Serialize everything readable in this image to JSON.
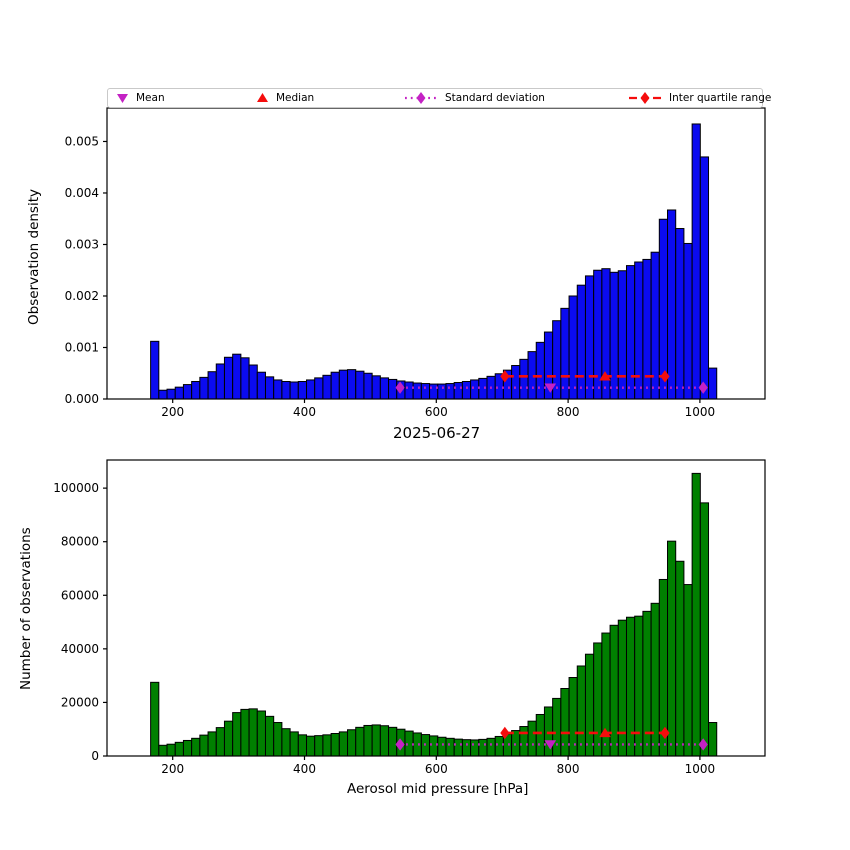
{
  "figure": {
    "title": "2025-06-27",
    "xlabel": "Aerosol mid pressure [hPa]",
    "background": "#ffffff"
  },
  "colors": {
    "density_bar": "#0b0bf0",
    "count_bar": "#008000",
    "bar_edge": "#000000",
    "mean_std": "#c422c4",
    "median_iqr": "#f50d0d",
    "axes": "#000000"
  },
  "legend": {
    "entries": [
      {
        "label": "Mean",
        "marker": "triangle-down"
      },
      {
        "label": "Median",
        "marker": "triangle-up"
      },
      {
        "label": "Standard deviation",
        "marker": "diamond-dotted-line"
      },
      {
        "label": "Inter quartile range",
        "marker": "diamond-dashed-line"
      }
    ]
  },
  "chart_data": [
    {
      "type": "bar",
      "name": "observation-density-histogram",
      "ylabel": "Observation density",
      "bar_color": "#0b0bf0",
      "bins_start_hpa": 166.5,
      "bin_width_hpa": 12.45,
      "values": [
        0.00112,
        0.00017,
        0.00019,
        0.00023,
        0.00028,
        0.00034,
        0.00042,
        0.00053,
        0.00068,
        0.00081,
        0.00087,
        0.0008,
        0.00066,
        0.00052,
        0.00043,
        0.00037,
        0.00034,
        0.00033,
        0.00034,
        0.00037,
        0.00041,
        0.00046,
        0.00052,
        0.00056,
        0.00057,
        0.00054,
        0.0005,
        0.00045,
        0.00041,
        0.00038,
        0.00035,
        0.00033,
        0.00031,
        0.0003,
        0.00029,
        0.00029,
        0.0003,
        0.00032,
        0.00034,
        0.00037,
        0.0004,
        0.00044,
        0.00049,
        0.00056,
        0.00065,
        0.00077,
        0.00092,
        0.0011,
        0.0013,
        0.00152,
        0.00176,
        0.002,
        0.00221,
        0.00239,
        0.0025,
        0.00253,
        0.00246,
        0.00249,
        0.00259,
        0.00266,
        0.00271,
        0.00285,
        0.00349,
        0.00367,
        0.00331,
        0.00302,
        0.00534,
        0.0047,
        0.0006
      ],
      "xlim": [
        100,
        1099
      ],
      "ylim": [
        0,
        0.00565
      ],
      "xticks": [
        "200",
        "400",
        "600",
        "800",
        "1000"
      ],
      "xtick_values": [
        200,
        400,
        600,
        800,
        1000
      ],
      "ytick_values": [
        0,
        0.001,
        0.002,
        0.003,
        0.004,
        0.005
      ],
      "ytick_labels": [
        "0.000",
        "0.001",
        "0.002",
        "0.003",
        "0.004",
        "0.005"
      ],
      "stats": {
        "mean_hpa": 773,
        "median_hpa": 856,
        "std_range_hpa": [
          545,
          1005
        ],
        "iqr_range_hpa": [
          704,
          947
        ],
        "mean_std_line_y": 0.00022,
        "median_iqr_line_y": 0.00044
      }
    },
    {
      "type": "bar",
      "name": "observation-count-histogram",
      "ylabel": "Number of observations",
      "bar_color": "#008000",
      "bins_start_hpa": 166.5,
      "bin_width_hpa": 12.45,
      "values": [
        27500,
        4000,
        4400,
        5100,
        5800,
        6600,
        7800,
        9000,
        10600,
        13000,
        16200,
        17400,
        17600,
        16800,
        14800,
        12500,
        10200,
        9000,
        7900,
        7400,
        7600,
        7900,
        8400,
        9000,
        9800,
        10700,
        11400,
        11600,
        11300,
        10700,
        10000,
        9300,
        8600,
        8000,
        7500,
        7000,
        6600,
        6300,
        6100,
        6000,
        6200,
        6600,
        7300,
        8200,
        9500,
        11000,
        13000,
        15500,
        18300,
        21500,
        25200,
        29300,
        33600,
        38000,
        42200,
        45900,
        48800,
        50700,
        51800,
        52200,
        54000,
        57000,
        65900,
        80200,
        72700,
        64000,
        105500,
        94500,
        12500
      ],
      "xlim": [
        100,
        1099
      ],
      "ylim": [
        0,
        110500
      ],
      "xticks": [
        "200",
        "400",
        "600",
        "800",
        "1000"
      ],
      "xtick_values": [
        200,
        400,
        600,
        800,
        1000
      ],
      "ytick_values": [
        0,
        20000,
        40000,
        60000,
        80000,
        100000
      ],
      "ytick_labels": [
        "0",
        "20000",
        "40000",
        "60000",
        "80000",
        "100000"
      ],
      "stats": {
        "mean_hpa": 773,
        "median_hpa": 856,
        "std_range_hpa": [
          545,
          1005
        ],
        "iqr_range_hpa": [
          704,
          947
        ],
        "mean_std_line_y": 4300,
        "median_iqr_line_y": 8600
      }
    }
  ]
}
